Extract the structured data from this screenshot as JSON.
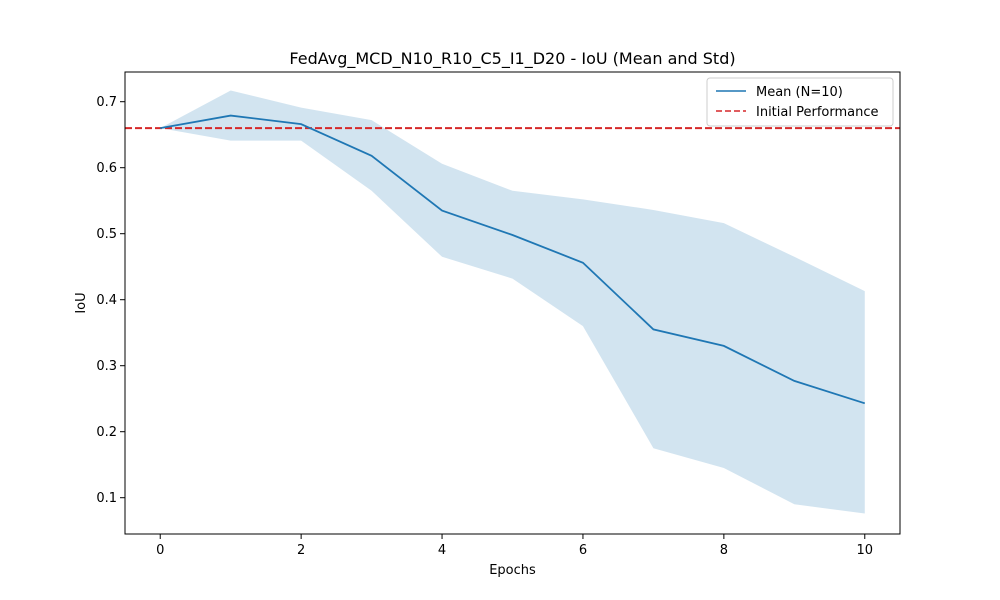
{
  "chart_data": {
    "type": "line",
    "title": "FedAvg_MCD_N10_R10_C5_I1_D20 - IoU (Mean and Std)",
    "xlabel": "Epochs",
    "ylabel": "IoU",
    "xlim": [
      -0.5,
      10.5
    ],
    "ylim": [
      0.045,
      0.745
    ],
    "x_ticks": [
      0,
      2,
      4,
      6,
      8,
      10
    ],
    "y_ticks": [
      0.1,
      0.2,
      0.3,
      0.4,
      0.5,
      0.6,
      0.7
    ],
    "x_tick_labels": [
      "0",
      "2",
      "4",
      "6",
      "8",
      "10"
    ],
    "y_tick_labels": [
      "0.1",
      "0.2",
      "0.3",
      "0.4",
      "0.5",
      "0.6",
      "0.7"
    ],
    "grid": false,
    "legend_position": "top-right",
    "x": [
      0,
      1,
      2,
      3,
      4,
      5,
      6,
      7,
      8,
      9,
      10
    ],
    "series": [
      {
        "name": "Mean (N=10)",
        "color": "#1f77b4",
        "values": [
          0.66,
          0.679,
          0.666,
          0.618,
          0.535,
          0.498,
          0.456,
          0.355,
          0.33,
          0.277,
          0.243
        ],
        "std_upper": [
          0.66,
          0.717,
          0.691,
          0.672,
          0.606,
          0.565,
          0.552,
          0.536,
          0.516,
          0.465,
          0.413
        ],
        "std_lower": [
          0.66,
          0.641,
          0.641,
          0.565,
          0.465,
          0.432,
          0.36,
          0.175,
          0.145,
          0.09,
          0.076
        ],
        "band_color": "#1f77b4"
      }
    ],
    "reference_line": {
      "name": "Initial Performance",
      "value": 0.66,
      "color": "#d62728",
      "style": "dashed"
    }
  }
}
